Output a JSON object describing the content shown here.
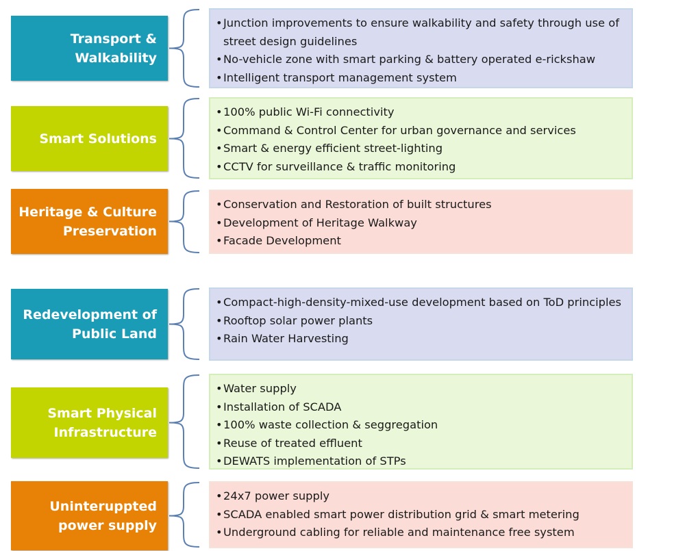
{
  "rows": [
    {
      "label": "Transport &\nWalkability",
      "items": [
        "Junction improvements to ensure walkability and safety through use of street design guidelines",
        "No-vehicle zone with smart parking & battery operated e-rickshaw",
        "Intelligent transport management system"
      ]
    },
    {
      "label": "Smart Solutions",
      "items": [
        "100% public Wi-Fi connectivity",
        "Command & Control Center for urban governance and services",
        "Smart & energy efficient street-lighting",
        "CCTV for surveillance & traffic monitoring"
      ]
    },
    {
      "label": "Heritage & Culture\nPreservation",
      "items": [
        "Conservation and Restoration of built structures",
        "Development of Heritage Walkway",
        "Facade Development"
      ]
    },
    {
      "label": "Redevelopment of\nPublic Land",
      "items": [
        "Compact-high-density-mixed-use development based on ToD principles",
        "Rooftop solar power plants",
        "Rain Water Harvesting"
      ]
    },
    {
      "label": "Smart Physical\nInfrastructure",
      "items": [
        "Water supply",
        "Installation of SCADA",
        "100% waste collection & seggregation",
        "Reuse of treated effluent",
        "DEWATS implementation of STPs"
      ]
    },
    {
      "label": "Uninteruppted\npower supply",
      "items": [
        "24x7 power supply",
        "SCADA enabled smart power distribution grid & smart metering",
        "Underground cabling for reliable and maintenance free system"
      ]
    }
  ],
  "colors": {
    "teal": "#1a9bb6",
    "lime": "#c2d500",
    "orange": "#e88206",
    "panel_blue_bg": "#d9dbf0",
    "panel_blue_border": "#c5d8ea",
    "panel_green_bg": "#eaf7d8",
    "panel_green_border": "#d4edbb",
    "panel_pink_bg": "#fbdcd7",
    "panel_pink_border": "#f6e2d8",
    "brace": "#5a7fb0"
  }
}
